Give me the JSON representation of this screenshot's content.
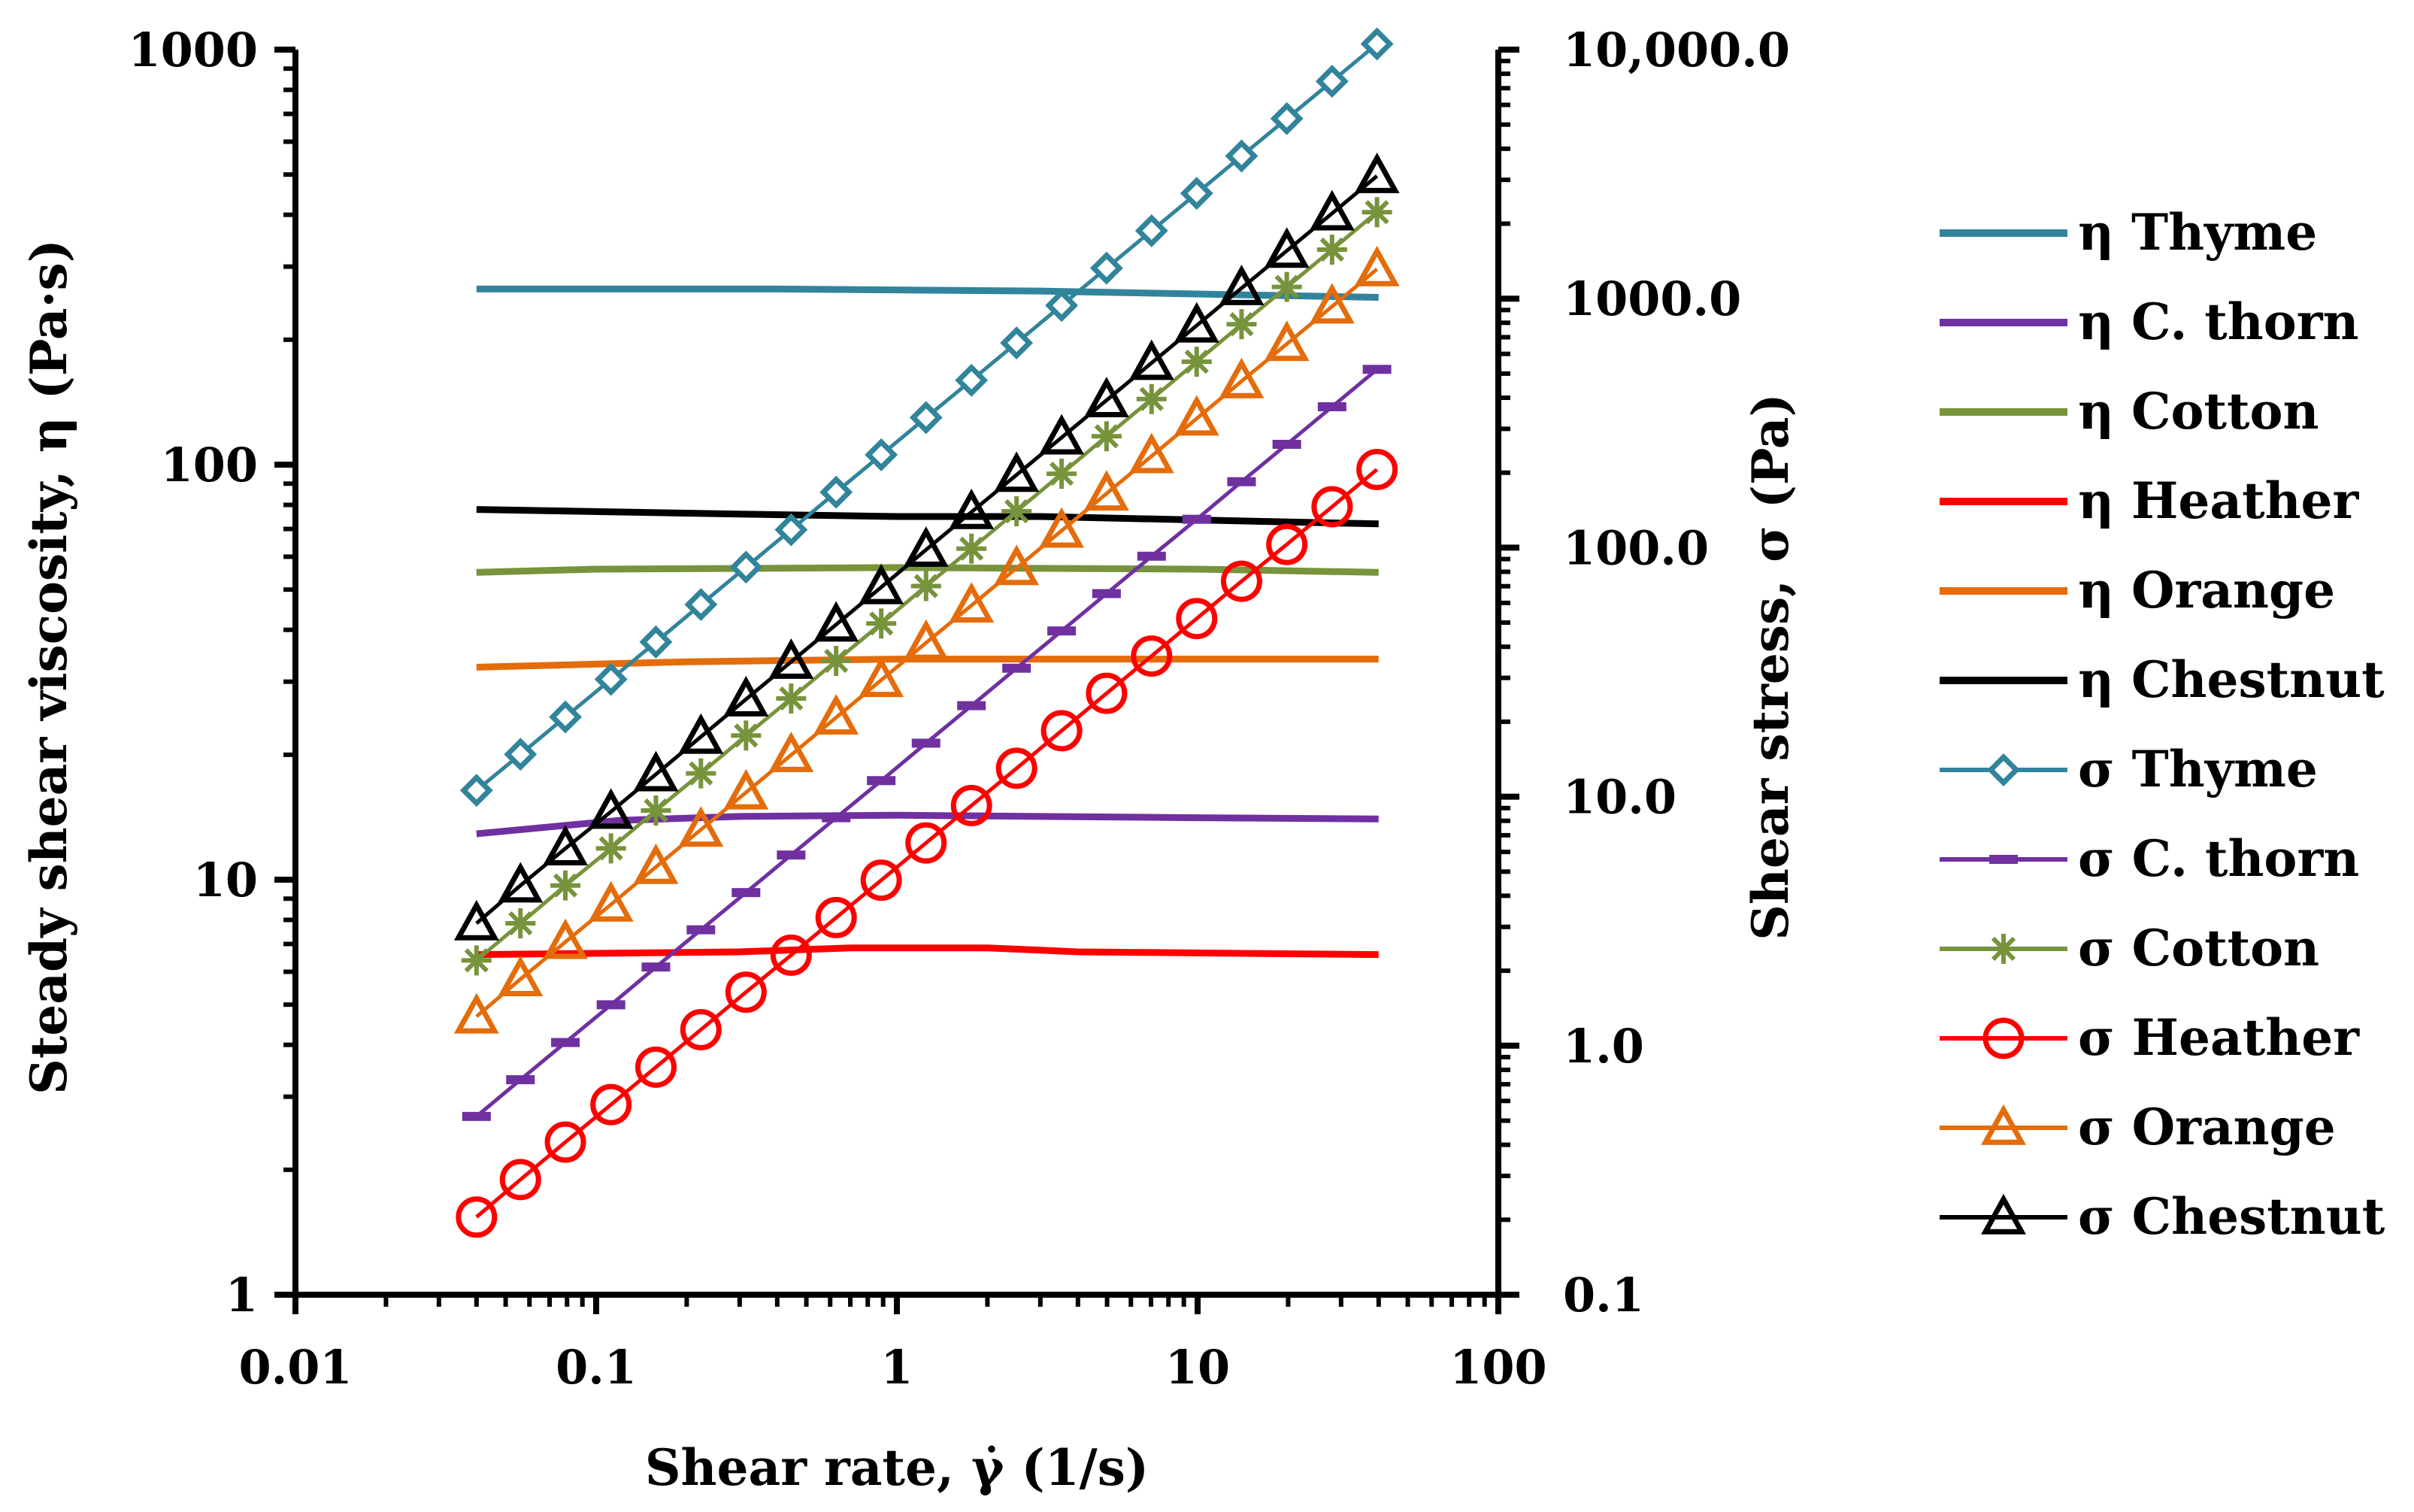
{
  "chart_data": {
    "type": "line",
    "xlabel": "Shear rate, γ̇  (1/s)",
    "ylabel": "Steady shear viscosity, η (Pa·s)",
    "y2label": "Shear stress, σ (Pa)",
    "xscale": "log",
    "yscale": "log",
    "y2scale": "log",
    "xlim": [
      0.01,
      100
    ],
    "ylim": [
      1,
      1000
    ],
    "y2lim": [
      0.1,
      10000
    ],
    "x_ticks": [
      0.01,
      0.1,
      1,
      10,
      100
    ],
    "x_tick_labels": [
      "0.01",
      "0.1",
      "1",
      "10",
      "100"
    ],
    "y_ticks": [
      1,
      10,
      100,
      1000
    ],
    "y_tick_labels": [
      "1",
      "10",
      "100",
      "1000"
    ],
    "y2_ticks": [
      0.1,
      1,
      10,
      100,
      1000,
      10000
    ],
    "y2_tick_labels": [
      "0.1",
      "1.0",
      "10.0",
      "100.0",
      "1000.0",
      "10,000.0"
    ],
    "legend_position": "right",
    "x": [
      0.04,
      0.056,
      0.079,
      0.112,
      0.158,
      0.223,
      0.315,
      0.445,
      0.628,
      0.887,
      1.25,
      1.77,
      2.5,
      3.53,
      4.98,
      7.03,
      9.93,
      14.0,
      19.8,
      28.0,
      39.5
    ],
    "viscosity_series": [
      {
        "name": "η Thyme",
        "color": "#31849B",
        "points": [
          [
            0.04,
            265
          ],
          [
            0.4,
            265
          ],
          [
            3.0,
            262
          ],
          [
            40,
            253
          ]
        ]
      },
      {
        "name": "η C. thorn",
        "color": "#7030A0",
        "points": [
          [
            0.04,
            12.9
          ],
          [
            0.07,
            13.4
          ],
          [
            0.12,
            13.9
          ],
          [
            0.3,
            14.2
          ],
          [
            1.0,
            14.3
          ],
          [
            10,
            14.1
          ],
          [
            40,
            14.0
          ]
        ]
      },
      {
        "name": "η Cotton",
        "color": "#77933C",
        "points": [
          [
            0.04,
            55
          ],
          [
            0.1,
            56
          ],
          [
            1.0,
            56.5
          ],
          [
            10,
            56
          ],
          [
            40,
            55
          ]
        ]
      },
      {
        "name": "η Heather",
        "color": "#FF0000",
        "points": [
          [
            0.04,
            6.6
          ],
          [
            0.3,
            6.7
          ],
          [
            0.7,
            6.85
          ],
          [
            2.0,
            6.85
          ],
          [
            4.0,
            6.7
          ],
          [
            40,
            6.6
          ]
        ]
      },
      {
        "name": "η Orange",
        "color": "#E46C0A",
        "points": [
          [
            0.04,
            32.5
          ],
          [
            0.2,
            33.5
          ],
          [
            1.0,
            34
          ],
          [
            10,
            34
          ],
          [
            40,
            34
          ]
        ]
      },
      {
        "name": "η Chestnut",
        "color": "#000000",
        "points": [
          [
            0.04,
            78
          ],
          [
            0.3,
            76
          ],
          [
            1.0,
            75
          ],
          [
            3.0,
            75
          ],
          [
            40,
            72
          ]
        ]
      }
    ],
    "stress_series": [
      {
        "name": "σ Thyme",
        "color": "#31849B",
        "marker": "diamond",
        "values": [
          10.6,
          14.8,
          20.9,
          29.6,
          41.8,
          59.1,
          83.5,
          118,
          167,
          236,
          333,
          470,
          664,
          939,
          1326,
          1873,
          2647,
          3739,
          5283,
          7463,
          10540
        ]
      },
      {
        "name": "σ C. thorn",
        "color": "#7030A0",
        "marker": "dash",
        "values": [
          0.52,
          0.73,
          1.03,
          1.46,
          2.07,
          2.92,
          4.12,
          5.83,
          8.23,
          11.6,
          16.4,
          23.2,
          32.8,
          46.3,
          65.4,
          92.4,
          130,
          184,
          260,
          368,
          520
        ]
      },
      {
        "name": "σ Cotton",
        "color": "#77933C",
        "marker": "asterisk",
        "values": [
          2.2,
          3.1,
          4.4,
          6.2,
          8.8,
          12.4,
          17.6,
          24.8,
          35.1,
          49.6,
          70.1,
          99.1,
          140,
          198,
          280,
          395,
          558,
          789,
          1114,
          1574,
          2224
        ]
      },
      {
        "name": "σ Heather",
        "color": "#FF0000",
        "marker": "circle",
        "values": [
          0.205,
          0.29,
          0.41,
          0.58,
          0.82,
          1.16,
          1.64,
          2.31,
          3.27,
          4.62,
          6.52,
          9.21,
          13.0,
          18.4,
          26.0,
          36.7,
          51.9,
          73.3,
          103,
          146,
          206
        ]
      },
      {
        "name": "σ Orange",
        "color": "#E46C0A",
        "marker": "triangle",
        "values": [
          1.31,
          1.85,
          2.61,
          3.69,
          5.22,
          7.37,
          10.4,
          14.7,
          20.8,
          29.4,
          41.5,
          58.6,
          82.8,
          117,
          165,
          233,
          330,
          466,
          658,
          930,
          1313
        ]
      },
      {
        "name": "σ Chestnut",
        "color": "#000000",
        "marker": "triangle",
        "values": [
          3.1,
          4.4,
          6.2,
          8.7,
          12.3,
          17.4,
          24.6,
          34.8,
          49.1,
          69.4,
          98.1,
          139,
          196,
          277,
          391,
          552,
          780,
          1102,
          1557,
          2200,
          3107
        ]
      }
    ]
  }
}
